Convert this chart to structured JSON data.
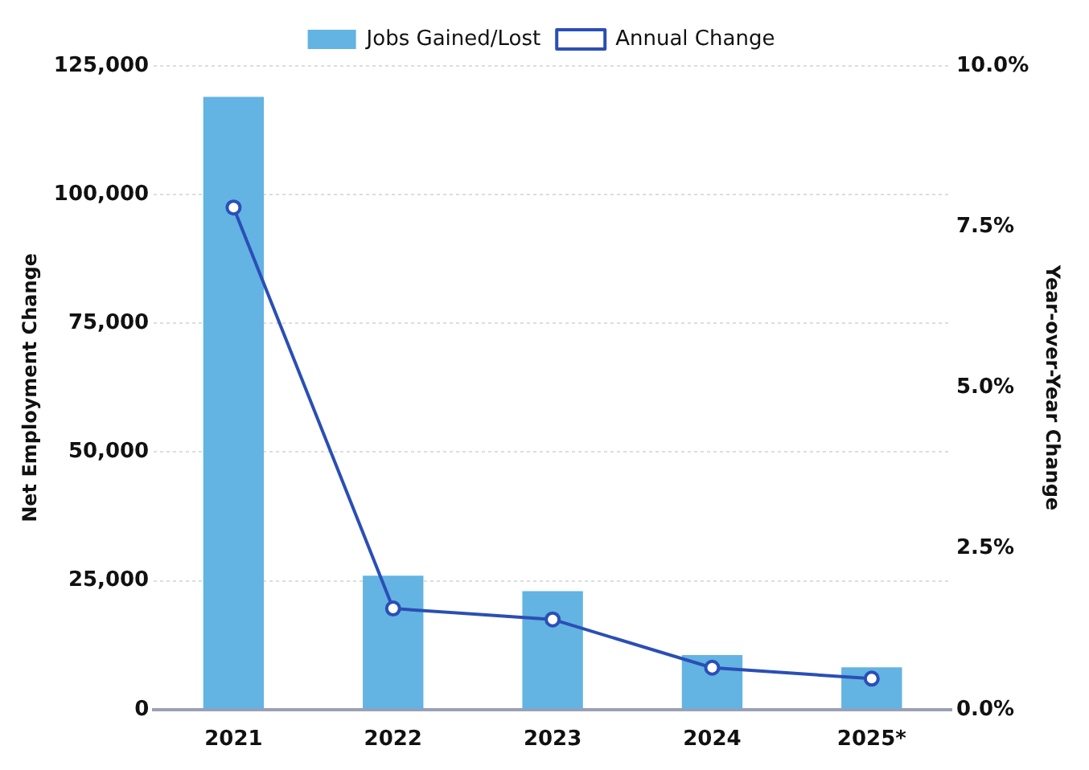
{
  "chart_data": {
    "type": "bar",
    "categories": [
      "2021",
      "2022",
      "2023",
      "2024",
      "2025*"
    ],
    "series": [
      {
        "name": "Jobs Gained/Lost",
        "color": "#63b3e3",
        "values": [
          119000,
          26000,
          23000,
          10600,
          8200
        ]
      },
      {
        "name": "Annual Change",
        "type": "line",
        "axis": "y2",
        "color": "#2a4fb5",
        "values": [
          7.8,
          1.57,
          1.4,
          0.65,
          0.48
        ]
      }
    ],
    "ylabel": "Net Employment Change",
    "y2label": "Year-over-Year Change",
    "ylim": [
      0,
      125000
    ],
    "yticks": [
      {
        "value": 0,
        "label": "0"
      },
      {
        "value": 25000,
        "label": "25,000"
      },
      {
        "value": 50000,
        "label": "50,000"
      },
      {
        "value": 75000,
        "label": "75,000"
      },
      {
        "value": 100000,
        "label": "100,000"
      },
      {
        "value": 125000,
        "label": "125,000"
      }
    ],
    "y2lim": [
      0,
      10
    ],
    "y2ticks": [
      {
        "value": 0,
        "label": "0.0%"
      },
      {
        "value": 2.5,
        "label": "2.5%"
      },
      {
        "value": 5,
        "label": "5.0%"
      },
      {
        "value": 7.5,
        "label": "7.5%"
      },
      {
        "value": 10,
        "label": "10.0%"
      }
    ],
    "grid": "y",
    "legend": "top",
    "marker": "circle",
    "line_style": "solid"
  }
}
